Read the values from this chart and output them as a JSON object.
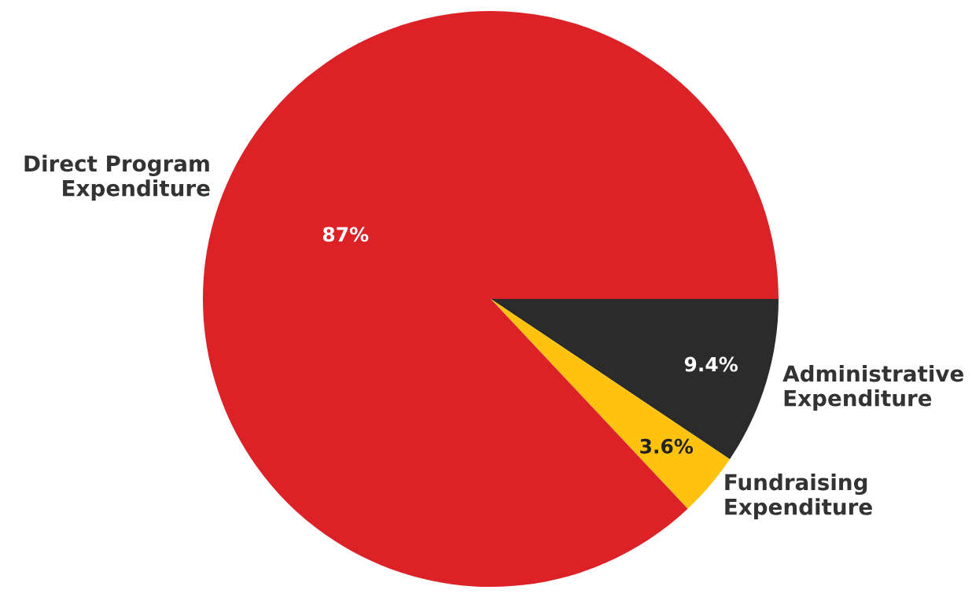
{
  "chart_data": {
    "type": "pie",
    "categories": [
      "Administrative\nExpenditure",
      "Fundraising\nExpenditure",
      "Direct Program\nExpenditure"
    ],
    "values": [
      9.4,
      3.6,
      87
    ],
    "colors": [
      "#2b2b2b",
      "#ffc20e",
      "#dc2227"
    ],
    "value_labels": [
      "9.4%",
      "3.6%",
      "87%"
    ],
    "legend": false
  }
}
